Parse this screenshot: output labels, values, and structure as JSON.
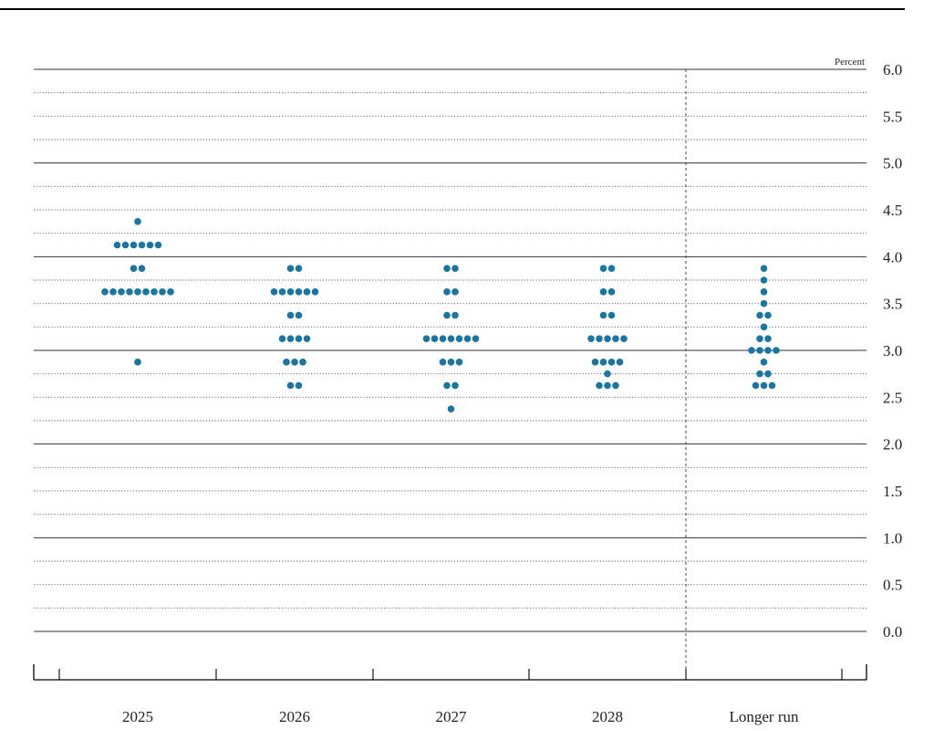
{
  "chart_data": {
    "type": "scatter",
    "unit_label": "Percent",
    "ylim": [
      0,
      6
    ],
    "y_ticks": [
      "0.0",
      "0.5",
      "1.0",
      "1.5",
      "2.0",
      "2.5",
      "3.0",
      "3.5",
      "4.0",
      "4.5",
      "5.0",
      "5.5",
      "6.0"
    ],
    "categories": [
      "2025",
      "2026",
      "2027",
      "2028",
      "Longer run"
    ],
    "dot_color": "#1a75a0",
    "columns": [
      {
        "category": "2025",
        "dots": [
          {
            "y": 4.375,
            "n": 1
          },
          {
            "y": 4.125,
            "n": 6
          },
          {
            "y": 3.875,
            "n": 2
          },
          {
            "y": 3.625,
            "n": 9
          },
          {
            "y": 2.875,
            "n": 1
          }
        ]
      },
      {
        "category": "2026",
        "dots": [
          {
            "y": 3.875,
            "n": 2
          },
          {
            "y": 3.625,
            "n": 6
          },
          {
            "y": 3.375,
            "n": 2
          },
          {
            "y": 3.125,
            "n": 4
          },
          {
            "y": 2.875,
            "n": 3
          },
          {
            "y": 2.625,
            "n": 2
          }
        ]
      },
      {
        "category": "2027",
        "dots": [
          {
            "y": 3.875,
            "n": 2
          },
          {
            "y": 3.625,
            "n": 2
          },
          {
            "y": 3.375,
            "n": 2
          },
          {
            "y": 3.125,
            "n": 7
          },
          {
            "y": 2.875,
            "n": 3
          },
          {
            "y": 2.625,
            "n": 2
          },
          {
            "y": 2.375,
            "n": 1
          }
        ]
      },
      {
        "category": "2028",
        "dots": [
          {
            "y": 3.875,
            "n": 2
          },
          {
            "y": 3.625,
            "n": 2
          },
          {
            "y": 3.375,
            "n": 2
          },
          {
            "y": 3.125,
            "n": 5
          },
          {
            "y": 2.875,
            "n": 4
          },
          {
            "y": 2.75,
            "n": 1
          },
          {
            "y": 2.625,
            "n": 3
          }
        ]
      },
      {
        "category": "Longer run",
        "dots": [
          {
            "y": 3.875,
            "n": 1
          },
          {
            "y": 3.75,
            "n": 1
          },
          {
            "y": 3.625,
            "n": 1
          },
          {
            "y": 3.5,
            "n": 1
          },
          {
            "y": 3.375,
            "n": 2
          },
          {
            "y": 3.25,
            "n": 1
          },
          {
            "y": 3.125,
            "n": 2
          },
          {
            "y": 3.0,
            "n": 4
          },
          {
            "y": 2.875,
            "n": 1
          },
          {
            "y": 2.75,
            "n": 2
          },
          {
            "y": 2.625,
            "n": 3
          }
        ]
      }
    ]
  }
}
